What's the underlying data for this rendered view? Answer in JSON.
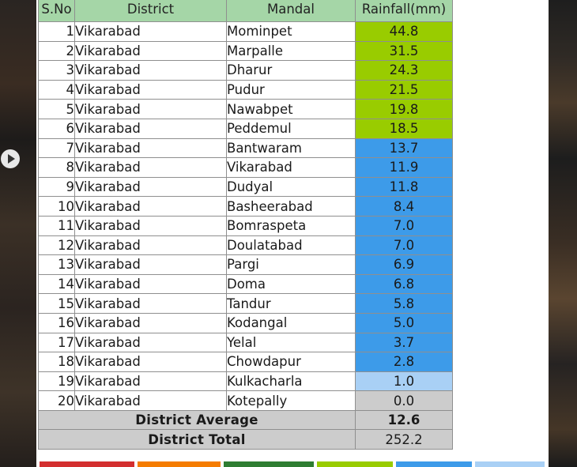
{
  "table": {
    "headers": [
      "S.No",
      "District",
      "Mandal",
      "Rainfall(mm)"
    ],
    "rows": [
      {
        "sno": "1",
        "district": "Vikarabad",
        "mandal": "Mominpet",
        "rainfall": "44.8",
        "level": "green"
      },
      {
        "sno": "2",
        "district": "Vikarabad",
        "mandal": "Marpalle",
        "rainfall": "31.5",
        "level": "green"
      },
      {
        "sno": "3",
        "district": "Vikarabad",
        "mandal": "Dharur",
        "rainfall": "24.3",
        "level": "green"
      },
      {
        "sno": "4",
        "district": "Vikarabad",
        "mandal": "Pudur",
        "rainfall": "21.5",
        "level": "green"
      },
      {
        "sno": "5",
        "district": "Vikarabad",
        "mandal": "Nawabpet",
        "rainfall": "19.8",
        "level": "green"
      },
      {
        "sno": "6",
        "district": "Vikarabad",
        "mandal": "Peddemul",
        "rainfall": "18.5",
        "level": "green"
      },
      {
        "sno": "7",
        "district": "Vikarabad",
        "mandal": "Bantwaram",
        "rainfall": "13.7",
        "level": "blue"
      },
      {
        "sno": "8",
        "district": "Vikarabad",
        "mandal": "Vikarabad",
        "rainfall": "11.9",
        "level": "blue"
      },
      {
        "sno": "9",
        "district": "Vikarabad",
        "mandal": "Dudyal",
        "rainfall": "11.8",
        "level": "blue"
      },
      {
        "sno": "10",
        "district": "Vikarabad",
        "mandal": "Basheerabad",
        "rainfall": "8.4",
        "level": "blue"
      },
      {
        "sno": "11",
        "district": "Vikarabad",
        "mandal": "Bomraspeta",
        "rainfall": "7.0",
        "level": "blue"
      },
      {
        "sno": "12",
        "district": "Vikarabad",
        "mandal": "Doulatabad",
        "rainfall": "7.0",
        "level": "blue"
      },
      {
        "sno": "13",
        "district": "Vikarabad",
        "mandal": "Pargi",
        "rainfall": "6.9",
        "level": "blue"
      },
      {
        "sno": "14",
        "district": "Vikarabad",
        "mandal": "Doma",
        "rainfall": "6.8",
        "level": "blue"
      },
      {
        "sno": "15",
        "district": "Vikarabad",
        "mandal": "Tandur",
        "rainfall": "5.8",
        "level": "blue"
      },
      {
        "sno": "16",
        "district": "Vikarabad",
        "mandal": "Kodangal",
        "rainfall": "5.0",
        "level": "blue"
      },
      {
        "sno": "17",
        "district": "Vikarabad",
        "mandal": "Yelal",
        "rainfall": "3.7",
        "level": "blue"
      },
      {
        "sno": "18",
        "district": "Vikarabad",
        "mandal": "Chowdapur",
        "rainfall": "2.8",
        "level": "blue"
      },
      {
        "sno": "19",
        "district": "Vikarabad",
        "mandal": "Kulkacharla",
        "rainfall": "1.0",
        "level": "light"
      },
      {
        "sno": "20",
        "district": "Vikarabad",
        "mandal": "Kotepally",
        "rainfall": "0.0",
        "level": "grey"
      }
    ],
    "summary": [
      {
        "label": "District Average",
        "value": "12.6",
        "level": "blue"
      },
      {
        "label": "District Total",
        "value": "252.2",
        "level": "grey"
      }
    ]
  },
  "level_colors": {
    "green": "#99cc00",
    "blue": "#3d9be9",
    "light": "#a9d0f5",
    "grey": "#cccccc",
    "header": "#a5d6a7"
  },
  "legend_colors": [
    "#d32f2f",
    "#f57c00",
    "#2e7d32",
    "#99cc00",
    "#3d9be9",
    "#a9d0f5"
  ],
  "overlay": {
    "icon": "play-icon"
  }
}
